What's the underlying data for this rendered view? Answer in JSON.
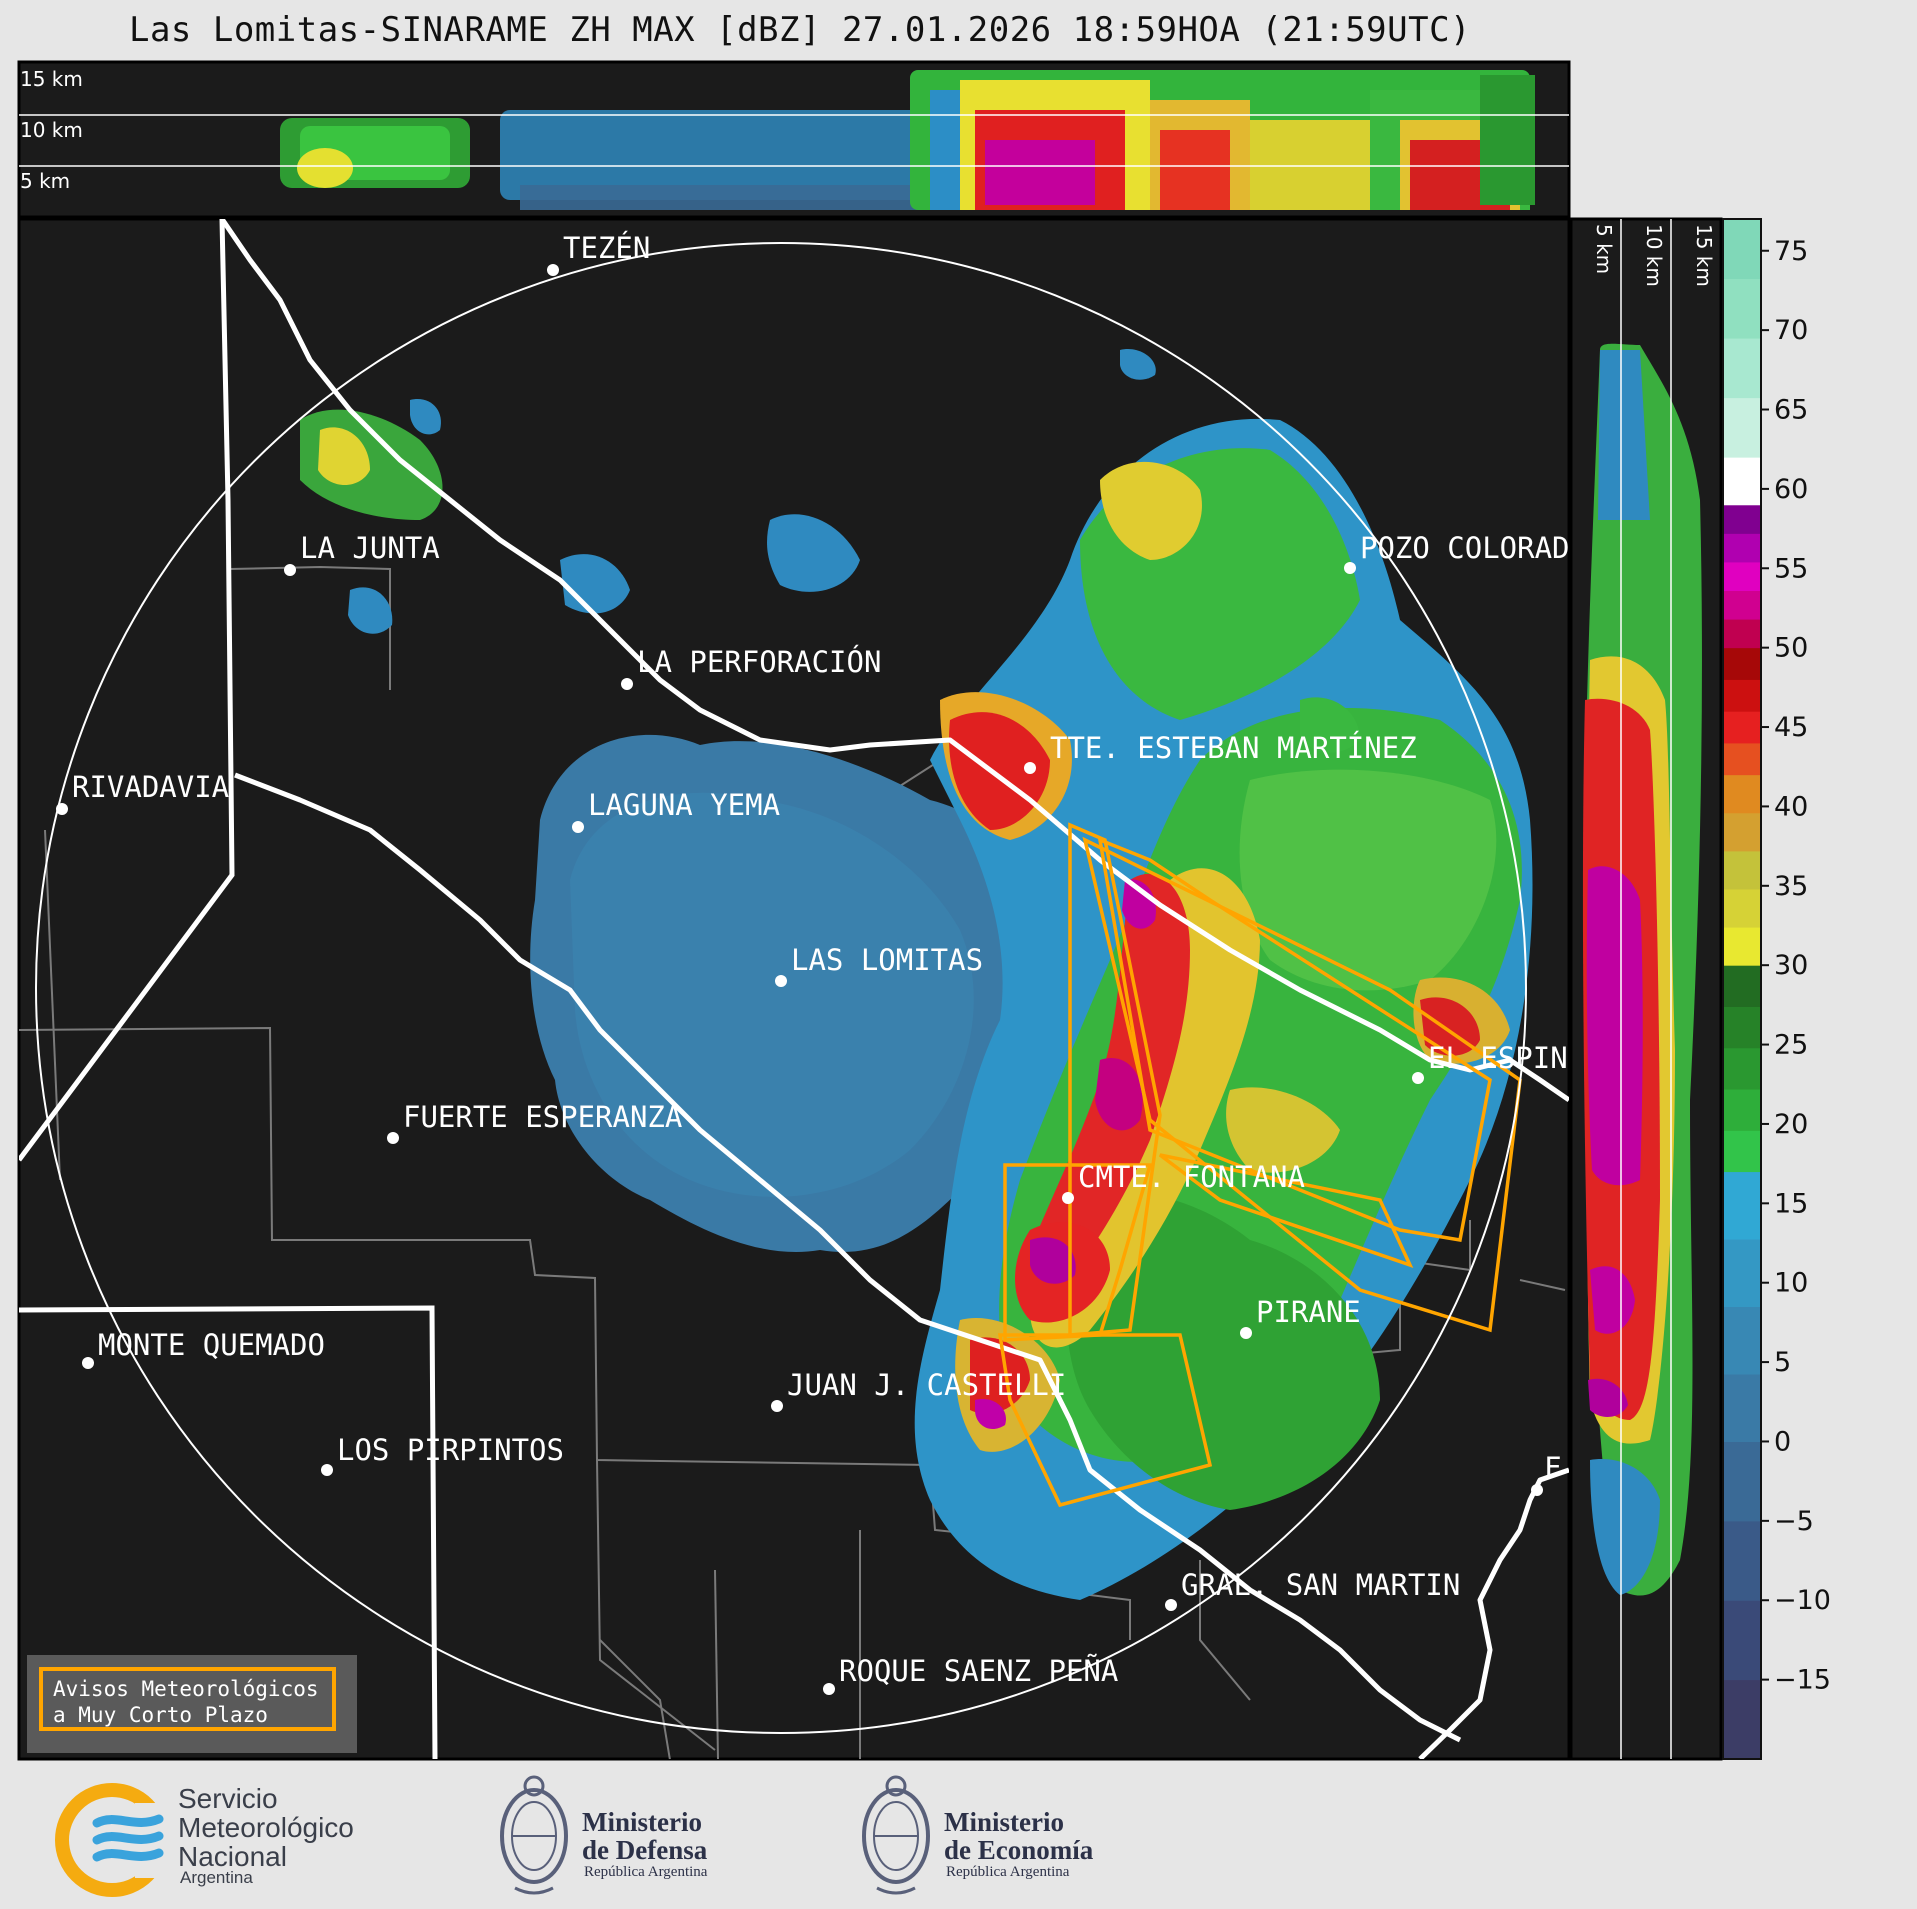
{
  "title": "Las Lomitas-SINARAME ZH MAX [dBZ] 27.01.2026 18:59HOA (21:59UTC)",
  "top_panel_altitudes": [
    "15 km",
    "10 km",
    "5 km"
  ],
  "side_panel_altitudes": [
    "5 km",
    "10 km",
    "15 km"
  ],
  "cities": [
    {
      "name": "TEZÉN"
    },
    {
      "name": "LA JUNTA"
    },
    {
      "name": "POZO COLORAD"
    },
    {
      "name": "LA PERFORACIÓN"
    },
    {
      "name": "TTE. ESTEBAN MARTÍNEZ"
    },
    {
      "name": "RIVADAVIA"
    },
    {
      "name": "LAGUNA YEMA"
    },
    {
      "name": "LAS LOMITAS"
    },
    {
      "name": "EL ESPIN"
    },
    {
      "name": "FUERTE ESPERANZA"
    },
    {
      "name": "CMTE. FONTANA"
    },
    {
      "name": "PIRANE"
    },
    {
      "name": "MONTE QUEMADO"
    },
    {
      "name": "JUAN J. CASTELLI"
    },
    {
      "name": "LOS PIRPINTOS"
    },
    {
      "name": "GRAL. SAN MARTIN"
    },
    {
      "name": "ROQUE SAENZ PEÑA"
    },
    {
      "name": "F"
    }
  ],
  "colorbar": {
    "unit": "dBZ",
    "ticks": [
      "75",
      "70",
      "65",
      "60",
      "55",
      "50",
      "45",
      "40",
      "35",
      "30",
      "25",
      "20",
      "15",
      "10",
      "5",
      "0",
      "−5",
      "−10",
      "−15"
    ],
    "bands": [
      {
        "from": -20,
        "to": 0,
        "colors": [
          "#3c3d66",
          "#3a4a78",
          "#3a5a88",
          "#3a6a96"
        ]
      },
      {
        "from": 0,
        "to": 17,
        "colors": [
          "#3a7aa6",
          "#3888b4",
          "#3498c4",
          "#30a8d4"
        ]
      },
      {
        "from": 17,
        "to": 30,
        "colors": [
          "#32c44a",
          "#2eae3a",
          "#2a9830",
          "#268228",
          "#226c22"
        ]
      },
      {
        "from": 30,
        "to": 42,
        "colors": [
          "#e8e830",
          "#d6d236",
          "#c4c23a",
          "#d4a030",
          "#e08a20"
        ]
      },
      {
        "from": 42,
        "to": 50,
        "colors": [
          "#e65020",
          "#e62020",
          "#cc1010",
          "#a60808"
        ]
      },
      {
        "from": 50,
        "to": 59,
        "colors": [
          "#c00050",
          "#d00090",
          "#e000c0",
          "#b000b0",
          "#800090"
        ]
      },
      {
        "from": 59,
        "to": 62,
        "colors": [
          "#ffffff"
        ]
      },
      {
        "from": 62,
        "to": 77,
        "colors": [
          "#c8f0e0",
          "#a8e8d0",
          "#90e0c0",
          "#80d8b8"
        ]
      }
    ]
  },
  "warnings_box": {
    "line1": "Avisos Meteorológicos",
    "line2": "a Muy Corto Plazo"
  },
  "logos": {
    "smn": {
      "name": "Servicio Meteorológico Nacional",
      "line1": "Servicio",
      "line2": "Meteorológico",
      "line3": "Nacional",
      "country": "Argentina"
    },
    "defensa": {
      "line1": "Ministerio",
      "line2": "de Defensa",
      "country": "República Argentina"
    },
    "economia": {
      "line1": "Ministerio",
      "line2": "de Economía",
      "country": "República Argentina"
    }
  },
  "colors": {
    "map_background": "#1b1b1b",
    "warning_polygon": "#ffa500",
    "range_ring": "#ffffff",
    "border_line": "#ffffff"
  }
}
